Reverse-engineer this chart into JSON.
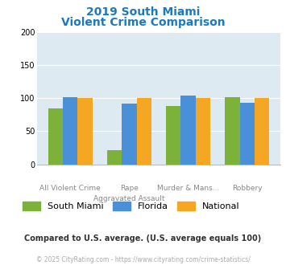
{
  "title_line1": "2019 South Miami",
  "title_line2": "Violent Crime Comparison",
  "title_color": "#1a7abf",
  "cat_labels_row1": [
    "",
    "Rape",
    "Murder & Mans...",
    ""
  ],
  "cat_labels_row2": [
    "All Violent Crime",
    "Aggravated Assault",
    "",
    "Robbery"
  ],
  "south_miami": [
    84,
    21,
    88,
    101
  ],
  "florida": [
    101,
    92,
    104,
    93
  ],
  "national": [
    100,
    100,
    100,
    100
  ],
  "color_south_miami": "#7db23a",
  "color_florida": "#4a90d9",
  "color_national": "#f5a623",
  "ylim": [
    0,
    200
  ],
  "yticks": [
    0,
    50,
    100,
    150,
    200
  ],
  "bg_color": "#ddeaf2",
  "legend_labels": [
    "South Miami",
    "Florida",
    "National"
  ],
  "footnote": "Compared to U.S. average. (U.S. average equals 100)",
  "footnote_color": "#333333",
  "copyright": "© 2025 CityRating.com - https://www.cityrating.com/crime-statistics/",
  "copyright_color": "#aaaaaa",
  "bar_width": 0.25
}
